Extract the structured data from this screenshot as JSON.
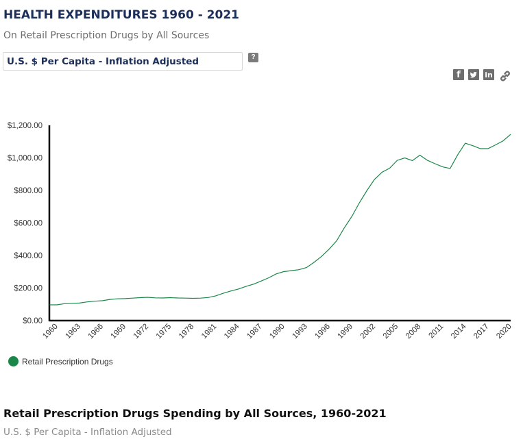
{
  "header": {
    "title": "HEALTH EXPENDITURES 1960 - 2021",
    "subtitle": "On Retail Prescription Drugs by All Sources",
    "measure_select": "U.S. $ Per Capita - Inflation Adjusted",
    "help_label": "?"
  },
  "share": {
    "icons": [
      "facebook-icon",
      "twitter-icon",
      "linkedin-icon",
      "link-icon"
    ],
    "facebook_glyph": "f",
    "twitter_glyph": "t",
    "linkedin_glyph": "in"
  },
  "colors": {
    "title": "#1c2f5a",
    "series": "#1a8748"
  },
  "chart_data": {
    "type": "line",
    "title": "",
    "xlabel": "",
    "ylabel": "",
    "ylim": [
      0,
      1200
    ],
    "yticks": [
      0,
      200,
      400,
      600,
      800,
      1000,
      1200
    ],
    "ytick_labels": [
      "$0.00",
      "$200.00",
      "$400.00",
      "$600.00",
      "$800.00",
      "$1,000.00",
      "$1,200.00"
    ],
    "xlim": [
      1960,
      2021
    ],
    "xtick_labels": [
      "1960",
      "1963",
      "1966",
      "1969",
      "1972",
      "1975",
      "1978",
      "1981",
      "1984",
      "1987",
      "1990",
      "1993",
      "1996",
      "1999",
      "2002",
      "2005",
      "2008",
      "2011",
      "2014",
      "2017",
      "2020"
    ],
    "grid": false,
    "legend_position": "bottom-left",
    "x": [
      1960,
      1961,
      1962,
      1963,
      1964,
      1965,
      1966,
      1967,
      1968,
      1969,
      1970,
      1971,
      1972,
      1973,
      1974,
      1975,
      1976,
      1977,
      1978,
      1979,
      1980,
      1981,
      1982,
      1983,
      1984,
      1985,
      1986,
      1987,
      1988,
      1989,
      1990,
      1991,
      1992,
      1993,
      1994,
      1995,
      1996,
      1997,
      1998,
      1999,
      2000,
      2001,
      2002,
      2003,
      2004,
      2005,
      2006,
      2007,
      2008,
      2009,
      2010,
      2011,
      2012,
      2013,
      2014,
      2015,
      2016,
      2017,
      2018,
      2019,
      2020,
      2021
    ],
    "series": [
      {
        "name": "Retail Prescription Drugs",
        "values": [
          97,
          97,
          104,
          106,
          108,
          115,
          119,
          122,
          130,
          134,
          135,
          138,
          141,
          143,
          140,
          139,
          141,
          139,
          138,
          137,
          138,
          142,
          152,
          168,
          182,
          194,
          210,
          224,
          243,
          263,
          287,
          301,
          307,
          313,
          326,
          358,
          395,
          439,
          491,
          570,
          640,
          724,
          800,
          868,
          912,
          937,
          985,
          1000,
          983,
          1017,
          985,
          964,
          945,
          935,
          1020,
          1090,
          1075,
          1057,
          1057,
          1080,
          1105,
          1145
        ]
      }
    ]
  },
  "section": {
    "title": "Retail Prescription Drugs Spending by All Sources, 1960-2021",
    "subtitle": "U.S. $ Per Capita - Inflation Adjusted"
  }
}
